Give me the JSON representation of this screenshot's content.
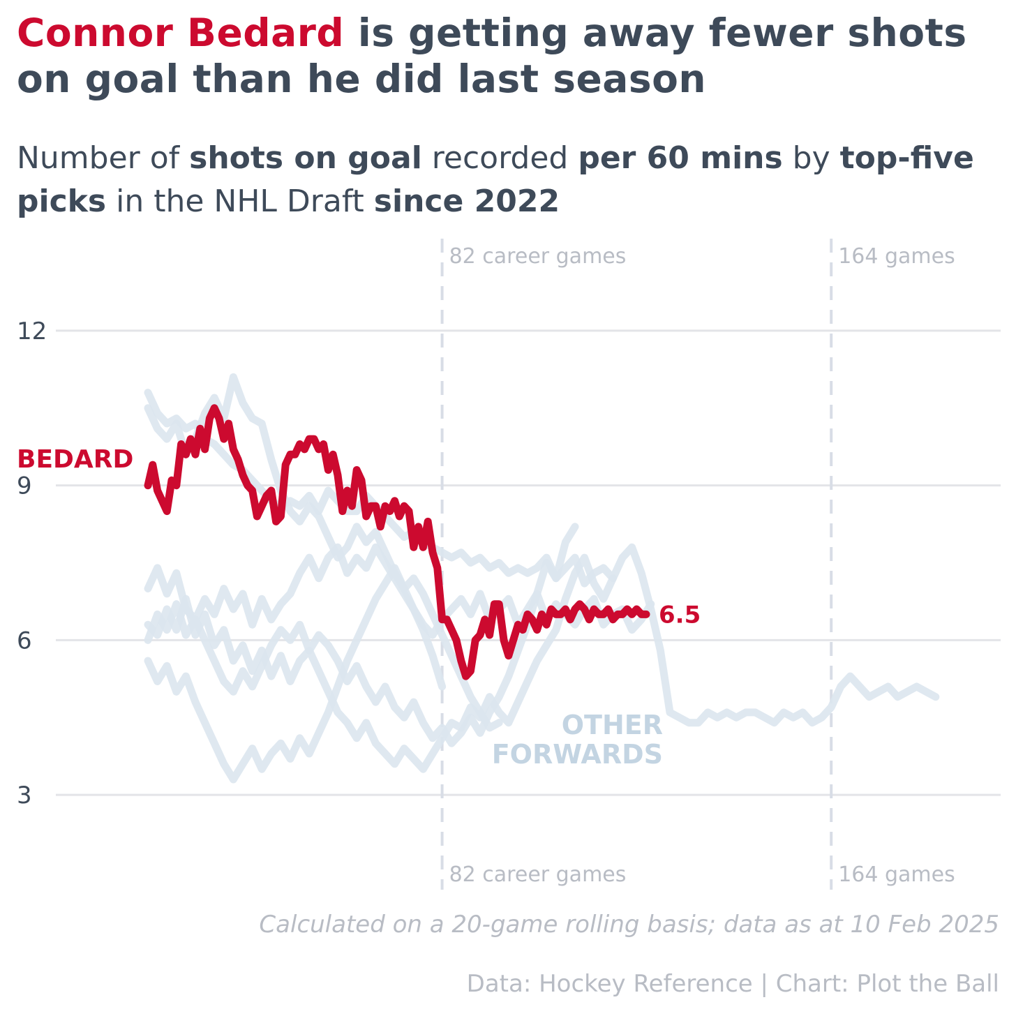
{
  "title": {
    "highlight": "Connor Bedard",
    "rest": " is getting away fewer shots on goal than he did last season"
  },
  "subtitle": {
    "p1": "Number of ",
    "b1": "shots on goal",
    "p2": " recorded ",
    "b2": "per 60 mins",
    "p3": " by ",
    "b3": "top-five picks",
    "p4": " in the NHL Draft ",
    "b4": "since 2022"
  },
  "footnote": "Calculated on a 20-game rolling basis; data as at 10 Feb 2025",
  "source": "Data: Hockey Reference | Chart: Plot the Ball",
  "colors": {
    "bedard": "#cc0a2f",
    "others": "#dce6ee",
    "others_label": "#c3d4e2",
    "grid": "#e3e4e8",
    "vline": "#d8dde6",
    "text": "#3e4a59",
    "muted": "#b8bcc4"
  },
  "chart_data": {
    "type": "line",
    "title": "Connor Bedard is getting away fewer shots on goal than he did last season",
    "xlabel": "",
    "ylabel": "",
    "xlim": [
      20,
      187
    ],
    "ylim": [
      1.5,
      13
    ],
    "y_ticks": [
      3,
      6,
      9,
      12
    ],
    "grid": true,
    "reference_lines": [
      {
        "x": 82,
        "label": "82 career games"
      },
      {
        "x": 164,
        "label": "164 games"
      }
    ],
    "annotations": {
      "bedard_label": "BEDARD",
      "bedard_end_label": "6.5",
      "others_label": [
        "OTHER",
        "FORWARDS"
      ]
    },
    "series": [
      {
        "name": "BEDARD",
        "highlight": true,
        "x": [
          20,
          21,
          22,
          24,
          25,
          26,
          27,
          28,
          29,
          30,
          31,
          32,
          33,
          34,
          35,
          36,
          37,
          38,
          39,
          40,
          41,
          42,
          43,
          44,
          45,
          46,
          47,
          48,
          49,
          50,
          51,
          52,
          53,
          54,
          55,
          56,
          57,
          58,
          59,
          60,
          61,
          62,
          63,
          64,
          65,
          66,
          67,
          68,
          69,
          70,
          71,
          72,
          73,
          74,
          75,
          76,
          77,
          78,
          79,
          80,
          81,
          82,
          83,
          84,
          85,
          86,
          87,
          88,
          89,
          90,
          91,
          92,
          93,
          94,
          95,
          96,
          97,
          98,
          99,
          100,
          101,
          102,
          103,
          104,
          105,
          106,
          107,
          108,
          109,
          110,
          111,
          112,
          113,
          114,
          115,
          116,
          117,
          118,
          119,
          120,
          121,
          122,
          123,
          124,
          125
        ],
        "values": [
          9.0,
          9.4,
          8.9,
          8.5,
          9.1,
          9.0,
          9.8,
          9.6,
          9.9,
          9.6,
          10.1,
          9.7,
          10.3,
          10.5,
          10.3,
          9.9,
          10.2,
          9.7,
          9.5,
          9.2,
          9.0,
          8.9,
          8.4,
          8.6,
          8.8,
          8.9,
          8.3,
          8.4,
          9.4,
          9.6,
          9.6,
          9.8,
          9.7,
          9.9,
          9.9,
          9.7,
          9.8,
          9.3,
          9.6,
          9.2,
          8.5,
          8.9,
          8.6,
          9.3,
          9.1,
          8.4,
          8.6,
          8.6,
          8.2,
          8.6,
          8.5,
          8.7,
          8.4,
          8.6,
          8.5,
          7.8,
          8.2,
          7.8,
          8.3,
          7.7,
          7.4,
          6.4,
          6.4,
          6.2,
          6.0,
          5.6,
          5.3,
          5.4,
          6.0,
          6.1,
          6.4,
          6.1,
          6.7,
          6.7,
          6.0,
          5.7,
          6.0,
          6.3,
          6.2,
          6.5,
          6.4,
          6.2,
          6.5,
          6.3,
          6.6,
          6.5,
          6.5,
          6.6,
          6.4,
          6.6,
          6.7,
          6.6,
          6.4,
          6.6,
          6.5,
          6.5,
          6.6,
          6.4,
          6.5,
          6.5,
          6.6,
          6.5,
          6.6,
          6.5,
          6.5
        ]
      },
      {
        "x": [
          20,
          22,
          24,
          26,
          28,
          30,
          32,
          34,
          36,
          38,
          40,
          42,
          44,
          46,
          48,
          50,
          52,
          54,
          56,
          58,
          60,
          62,
          64,
          66,
          68,
          70,
          72,
          74,
          76,
          78,
          80,
          82,
          84,
          86,
          88,
          90,
          92,
          94,
          96,
          98,
          100,
          102,
          104,
          106,
          108,
          110,
          112,
          114,
          116,
          118,
          120,
          122,
          124,
          126,
          128,
          130,
          132,
          134,
          136,
          138,
          140,
          142,
          144,
          146,
          148,
          150,
          152,
          154,
          156,
          158,
          160,
          162,
          164,
          166,
          168,
          170,
          172,
          174,
          176,
          178,
          180,
          182,
          184,
          186
        ],
        "values": [
          10.8,
          10.4,
          10.2,
          10.3,
          10.1,
          10.2,
          9.9,
          9.8,
          9.6,
          9.4,
          9.3,
          9.1,
          8.9,
          8.7,
          8.6,
          8.7,
          8.6,
          8.8,
          8.5,
          8.9,
          8.7,
          8.5,
          8.5,
          8.8,
          8.6,
          8.4,
          8.2,
          8.0,
          8.1,
          7.9,
          7.8,
          7.7,
          7.6,
          7.7,
          7.5,
          7.6,
          7.4,
          7.5,
          7.3,
          7.4,
          7.3,
          7.4,
          7.6,
          7.2,
          7.4,
          7.6,
          7.1,
          7.3,
          7.4,
          7.2,
          7.6,
          7.8,
          7.3,
          6.6,
          5.8,
          4.6,
          4.5,
          4.4,
          4.4,
          4.6,
          4.5,
          4.6,
          4.5,
          4.6,
          4.6,
          4.5,
          4.4,
          4.6,
          4.5,
          4.6,
          4.4,
          4.5,
          4.7,
          5.1,
          5.3,
          5.1,
          4.9,
          5.0,
          5.1,
          4.9,
          5.0,
          5.1,
          5.0,
          4.9
        ]
      },
      {
        "x": [
          20,
          22,
          24,
          26,
          28,
          30,
          32,
          34,
          36,
          38,
          40,
          42,
          44,
          46,
          48,
          50,
          52,
          54,
          56,
          58,
          60,
          62,
          64,
          66,
          68,
          70,
          72,
          74,
          76,
          78,
          80,
          82,
          84,
          86,
          88,
          90,
          92,
          94,
          96,
          98,
          100,
          102,
          104,
          106,
          108,
          110,
          112,
          114,
          116,
          118,
          120,
          122,
          124,
          126
        ],
        "values": [
          7.0,
          7.4,
          6.9,
          7.3,
          6.6,
          6.4,
          6.8,
          6.5,
          7.0,
          6.6,
          6.9,
          6.3,
          6.8,
          6.4,
          6.7,
          6.9,
          7.3,
          7.6,
          7.2,
          7.6,
          7.8,
          7.3,
          7.6,
          7.4,
          7.8,
          7.5,
          7.2,
          6.9,
          6.6,
          6.3,
          6.1,
          6.4,
          6.6,
          6.8,
          6.5,
          6.9,
          6.4,
          6.6,
          6.8,
          6.3,
          6.6,
          6.9,
          6.4,
          6.7,
          6.5,
          6.3,
          6.6,
          6.8,
          6.3,
          6.5,
          6.6,
          6.2,
          6.4,
          6.7
        ]
      },
      {
        "x": [
          20,
          22,
          24,
          26,
          28,
          30,
          32,
          34,
          36,
          38,
          40,
          42,
          44,
          46,
          48,
          50,
          52,
          54,
          56,
          58,
          60,
          62,
          64,
          66,
          68,
          70,
          72,
          74,
          76,
          78,
          80,
          82,
          84,
          86,
          88,
          90,
          92,
          94,
          96,
          98,
          100,
          102,
          104,
          106,
          108,
          110,
          112,
          114,
          116,
          118
        ],
        "values": [
          6.3,
          6.1,
          6.6,
          6.2,
          6.8,
          6.1,
          6.5,
          5.9,
          6.2,
          5.6,
          5.9,
          5.4,
          5.8,
          5.3,
          5.7,
          5.2,
          5.6,
          5.8,
          5.4,
          5.0,
          4.6,
          4.4,
          4.1,
          4.4,
          4.0,
          3.8,
          3.6,
          3.9,
          3.7,
          3.5,
          3.8,
          4.1,
          4.4,
          4.3,
          4.7,
          4.5,
          4.9,
          4.6,
          4.4,
          4.8,
          5.2,
          5.6,
          5.9,
          6.2,
          6.8,
          7.3,
          7.6,
          7.1,
          6.8,
          7.2
        ]
      },
      {
        "x": [
          20,
          22,
          24,
          26,
          28,
          30,
          32,
          34,
          36,
          38,
          40,
          42,
          44,
          46,
          48,
          50,
          52,
          54,
          56,
          58,
          60,
          62,
          64,
          66,
          68,
          70,
          72,
          74,
          76,
          78,
          80,
          82,
          84,
          86,
          88,
          90,
          92,
          94
        ],
        "values": [
          5.6,
          5.2,
          5.5,
          5.0,
          5.3,
          4.8,
          4.4,
          4.0,
          3.6,
          3.3,
          3.6,
          3.9,
          3.5,
          3.8,
          4.0,
          3.7,
          4.1,
          3.8,
          4.2,
          4.6,
          5.1,
          5.6,
          6.0,
          6.4,
          6.8,
          7.1,
          7.4,
          7.0,
          7.2,
          6.9,
          6.5,
          6.1,
          5.7,
          5.3,
          4.9,
          4.6,
          4.3,
          4.4
        ]
      },
      {
        "x": [
          20,
          22,
          24,
          26,
          28,
          30,
          32,
          34,
          36,
          38,
          40,
          42,
          44,
          46,
          48,
          50,
          52,
          54,
          56,
          58,
          60,
          62,
          64,
          66,
          68,
          70,
          72,
          74,
          76,
          78,
          80,
          82,
          84,
          86,
          88,
          90,
          92,
          94,
          96,
          98,
          100,
          102,
          104,
          106,
          108,
          110
        ],
        "values": [
          6.0,
          6.5,
          6.2,
          6.7,
          6.1,
          6.4,
          6.0,
          5.6,
          5.2,
          5.0,
          5.4,
          5.1,
          5.5,
          5.9,
          6.2,
          6.0,
          6.3,
          5.8,
          6.1,
          5.9,
          5.6,
          5.2,
          5.5,
          5.1,
          4.8,
          5.1,
          4.7,
          4.5,
          4.8,
          4.4,
          4.1,
          4.3,
          4.0,
          4.2,
          4.5,
          4.2,
          4.6,
          4.9,
          5.3,
          5.8,
          6.3,
          6.9,
          7.5,
          7.2,
          7.9,
          8.2
        ]
      },
      {
        "x": [
          20,
          22,
          24,
          26,
          28,
          30,
          32,
          34,
          36,
          38,
          40,
          42,
          44,
          46,
          48,
          50,
          52,
          54,
          56,
          58,
          60,
          62,
          64,
          66,
          68,
          70,
          72,
          74,
          76,
          78,
          80,
          82
        ],
        "values": [
          10.5,
          10.1,
          9.9,
          10.2,
          9.6,
          9.9,
          10.4,
          10.7,
          10.3,
          11.1,
          10.6,
          10.3,
          10.2,
          9.5,
          8.9,
          8.5,
          8.3,
          8.6,
          8.4,
          8.0,
          7.6,
          7.8,
          8.2,
          7.9,
          8.1,
          7.7,
          7.3,
          7.0,
          6.6,
          6.2,
          5.7,
          5.1
        ]
      }
    ]
  }
}
